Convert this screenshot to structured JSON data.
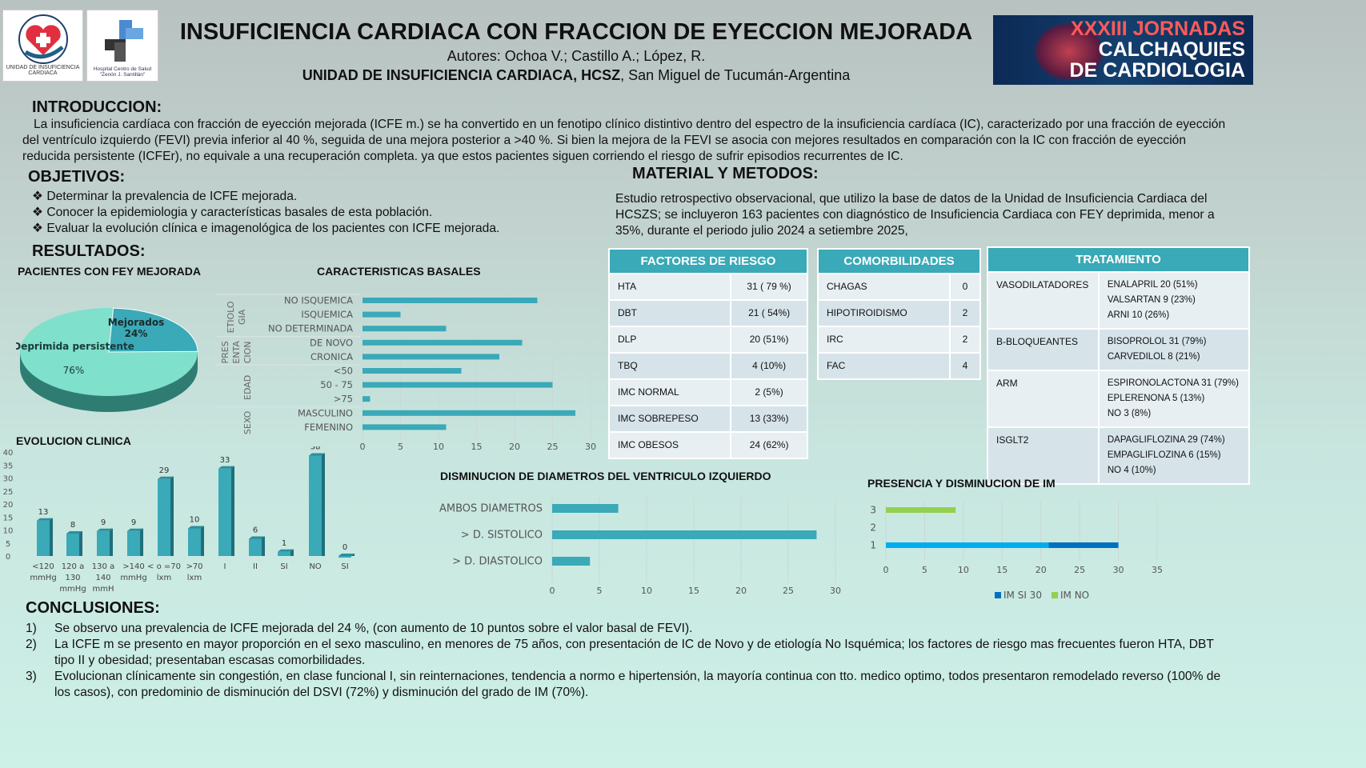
{
  "header": {
    "title": "INSUFICIENCIA CARDIACA CON FRACCION DE EYECCION MEJORADA",
    "authors": "Autores: Ochoa V.; Castillo A.; López, R.",
    "unit": "UNIDAD DE INSUFICIENCIA CARDIACA, HCSZ",
    "location": ", San Miguel de Tucumán-Argentina",
    "logo1": "UNIDAD DE INSUFICIENCIA CARDIACA",
    "logo2": "Hospital Centro de Salud \"Zenón J. Santillán\"",
    "banner": [
      "XXXIII JORNADAS",
      "CALCHAQUIES",
      "DE CARDIOLOGIA"
    ]
  },
  "intro": {
    "title": "INTRODUCCION:",
    "text": "La insuficiencia cardíaca con fracción de eyección mejorada (ICFE m.) se ha convertido en un fenotipo clínico distintivo dentro del espectro de la insuficiencia cardíaca (IC), caracterizado por una fracción de eyección del ventrículo izquierdo (FEVI) previa inferior al 40 %, seguida de una mejora posterior a >40 %. Si bien la mejora de la FEVI se asocia con mejores resultados en comparación con la IC con fracción de eyección reducida persistente  (ICFEr), no equivale a una recuperación completa. ya que estos pacientes siguen corriendo el riesgo de sufrir episodios recurrentes de IC."
  },
  "objetivos": {
    "title": "OBJETIVOS:",
    "items": [
      "Determinar  la prevalencia de ICFE  mejorada.",
      "Conocer  la epidemiologia y características basales de esta población.",
      "Evaluar  la evolución clínica e imagenológica de los pacientes con ICFE mejorada."
    ]
  },
  "metodos": {
    "title": "MATERIAL Y METODOS:",
    "text": "Estudio retrospectivo observacional, que utilizo la base de datos de la Unidad de Insuficiencia Cardiaca del HCSZS; se incluyeron 163 pacientes con diagnóstico de Insuficiencia Cardiaca con FEY deprimida, menor a 35%, durante el periodo julio 2024 a setiembre 2025,"
  },
  "resultados": {
    "title": "RESULTADOS:"
  },
  "factores": {
    "title": "FACTORES DE RIESGO",
    "rows": [
      [
        "HTA",
        "31  ( 79 %)"
      ],
      [
        "DBT",
        "21 ( 54%)"
      ],
      [
        "DLP",
        "20  (51%)"
      ],
      [
        "TBQ",
        "4 (10%)"
      ],
      [
        "IMC NORMAL",
        "2 (5%)"
      ],
      [
        "IMC SOBREPESO",
        "13 (33%)"
      ],
      [
        "IMC OBESOS",
        "24 (62%)"
      ]
    ]
  },
  "comorbilidades": {
    "title": "COMORBILIDADES",
    "rows": [
      [
        "CHAGAS",
        "0"
      ],
      [
        "HIPOTIROIDISMO",
        "2"
      ],
      [
        "IRC",
        "2"
      ],
      [
        "FAC",
        "4"
      ]
    ]
  },
  "tratamiento": {
    "title": "TRATAMIENTO",
    "rows": [
      {
        "k": "VASODILATADORES",
        "v": [
          "ENALAPRIL 20  (51%)",
          "VALSARTAN 9 (23%)",
          "ARNI  10 (26%)"
        ]
      },
      {
        "k": "B-BLOQUEANTES",
        "v": [
          "BISOPROLOL 31  (79%)",
          "CARVEDILOL 8 (21%)"
        ]
      },
      {
        "k": "ARM",
        "v": [
          "ESPIRONOLACTONA 31 (79%)",
          "EPLERENONA 5 (13%)",
          "NO 3 (8%)"
        ]
      },
      {
        "k": "ISGLT2",
        "v": [
          "DAPAGLIFLOZINA 29 (74%)",
          "EMPAGLIFLOZINA 6 (15%)",
          "NO 4 (10%)"
        ]
      }
    ]
  },
  "conclusiones": {
    "title": "CONCLUSIONES:",
    "items": [
      {
        "n": "1)",
        "t": "Se observo una prevalencia de ICFE mejorada del 24 %, (con aumento de 10 puntos sobre el valor basal de FEVI)."
      },
      {
        "n": "2)",
        "t": "La ICFE m se presento en mayor proporción en el sexo masculino, en menores de 75 años, con presentación de IC de Novo y de etiología No Isquémica; los factores de riesgo mas frecuentes fueron HTA, DBT tipo II y obesidad; presentaban escasas comorbilidades."
      },
      {
        "n": "3)",
        "t": "Evolucionan clínicamente sin congestión, en clase funcional I, sin reinternaciones, tendencia a normo e hipertensión, la mayoría continua con tto. medico optimo, todos presentaron remodelado reverso (100% de los casos), con predominio de disminución del DSVI (72%) y disminución del grado de  IM (70%)."
      }
    ]
  },
  "colors": {
    "bar": "#3aa9b8",
    "pie_main": "#7fe0cc",
    "pie_slice": "#3aa9b8",
    "im_si": "#00aeef",
    "im_si_dark": "#0070c0",
    "im_no": "#92d050"
  },
  "chart_data": [
    {
      "type": "pie",
      "title": "PACIENTES CON FEY MEJORADA",
      "slices": [
        {
          "label": "Mejorados",
          "value": 24,
          "pct": "24%"
        },
        {
          "label": "Deprimida persistente",
          "value": 76,
          "pct": "76%"
        }
      ]
    },
    {
      "type": "bar",
      "orientation": "horizontal",
      "title": "CARACTERISTICAS BASALES",
      "groups": [
        {
          "label": "ETIOLOGIA",
          "lines": [
            "ETIOLO",
            "GIA"
          ]
        },
        {
          "label": "PRESENTACION",
          "lines": [
            "PRES",
            "ENTA",
            "CION"
          ]
        },
        {
          "label": "EDAD",
          "lines": [
            "EDAD"
          ]
        },
        {
          "label": "SEXO",
          "lines": [
            "SEXO"
          ]
        }
      ],
      "categories": [
        "NO ISQUEMICA",
        "ISQUEMICA",
        "NO DETERMINADA",
        "DE NOVO",
        "CRONICA",
        "<50",
        "50 - 75",
        ">75",
        "MASCULINO",
        "FEMENINO"
      ],
      "values": [
        23,
        5,
        11,
        21,
        18,
        13,
        25,
        1,
        28,
        11
      ],
      "xlim": [
        0,
        30
      ],
      "ticks": [
        "0",
        "5",
        "10",
        "15",
        "20",
        "25",
        "30"
      ]
    },
    {
      "type": "bar",
      "orientation": "vertical",
      "title": "EVOLUCION CLINICA",
      "categories": [
        [
          "<120",
          "mmHg"
        ],
        [
          "120 a",
          "130",
          "mmHg"
        ],
        [
          "130 a",
          "140",
          "mmH"
        ],
        [
          ">140",
          "mmHg"
        ],
        [
          "< o =70",
          "lxm"
        ],
        [
          ">70",
          "lxm"
        ],
        [
          "I"
        ],
        [
          "II"
        ],
        [
          "SI"
        ],
        [
          "NO"
        ],
        [
          "SI"
        ]
      ],
      "values": [
        13,
        8,
        9,
        9,
        29,
        10,
        33,
        6,
        1,
        38,
        0
      ],
      "ylim": [
        0,
        40
      ],
      "ticks": [
        "0",
        "5",
        "10",
        "15",
        "20",
        "25",
        "30",
        "35",
        "40"
      ]
    },
    {
      "type": "bar",
      "orientation": "horizontal",
      "title": "DISMINUCION DE DIAMETROS DEL VENTRICULO IZQUIERDO",
      "categories": [
        "AMBOS DIAMETROS",
        "> D. SISTOLICO",
        "> D. DIASTOLICO"
      ],
      "values": [
        7,
        28,
        4
      ],
      "xlim": [
        0,
        30
      ],
      "ticks": [
        "0",
        "5",
        "10",
        "15",
        "20",
        "25",
        "30"
      ]
    },
    {
      "type": "bar",
      "orientation": "horizontal",
      "stacked": true,
      "title": "PRESENCIA Y DISMINUCION DE IM",
      "categories": [
        "3",
        "2",
        "1"
      ],
      "series": [
        {
          "name": "IM SI 30",
          "values": [
            0,
            0,
            21
          ],
          "extra": [
            0,
            0,
            9
          ]
        },
        {
          "name": "IM NO",
          "values": [
            9,
            0,
            0
          ]
        }
      ],
      "xlim": [
        0,
        35
      ],
      "ticks": [
        "0",
        "5",
        "10",
        "15",
        "20",
        "25",
        "30",
        "35"
      ],
      "legend": "bottom"
    }
  ]
}
